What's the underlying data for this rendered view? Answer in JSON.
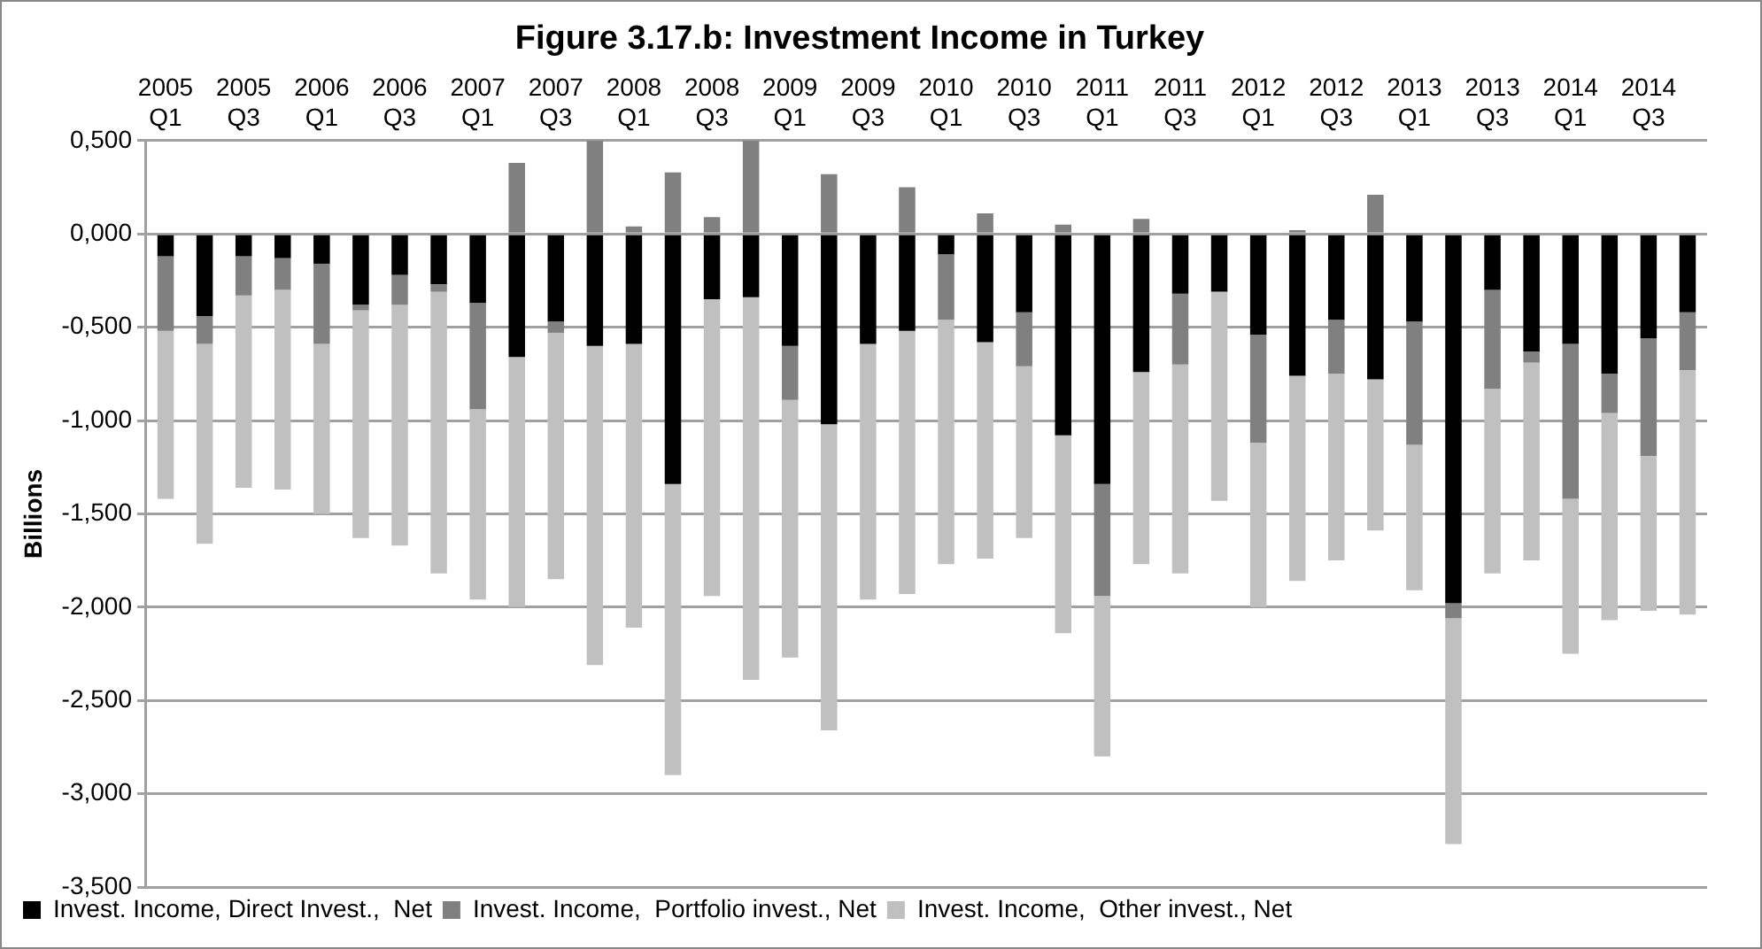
{
  "chart_data": {
    "type": "bar",
    "title": "Figure 3.17.b: Investment Income in Turkey",
    "ylabel": "Billions",
    "categories": [
      "2005 Q1",
      null,
      "2005 Q3",
      null,
      "2006 Q1",
      null,
      "2006 Q3",
      null,
      "2007 Q1",
      null,
      "2007 Q3",
      null,
      "2008 Q1",
      null,
      "2008 Q3",
      null,
      "2009 Q1",
      null,
      "2009 Q3",
      null,
      "2010 Q1",
      null,
      "2010 Q3",
      null,
      "2011 Q1",
      null,
      "2011 Q3",
      null,
      "2012 Q1",
      null,
      "2012 Q3",
      null,
      "2013 Q1",
      null,
      "2013 Q3",
      null,
      "2014 Q1",
      null,
      "2014 Q3",
      null
    ],
    "stacked": true,
    "series": [
      {
        "name": "Invest. Income, Direct Invest.,  Net",
        "color": "#000000",
        "values": [
          -0.12,
          -0.44,
          -0.12,
          -0.13,
          -0.16,
          -0.38,
          -0.22,
          -0.27,
          -0.37,
          -0.66,
          -0.47,
          -0.6,
          -0.59,
          -1.34,
          -0.35,
          -0.34,
          -0.6,
          -1.02,
          -0.59,
          -0.52,
          -0.11,
          -0.58,
          -0.42,
          -1.08,
          -1.34,
          -0.74,
          -0.32,
          -0.31,
          -0.54,
          -0.76,
          -0.46,
          -0.78,
          -0.47,
          -1.98,
          -0.3,
          -0.63,
          -0.59,
          -0.75,
          -0.56,
          -0.42
        ]
      },
      {
        "name": "Invest. Income,  Portfolio invest., Net",
        "color": "#808080",
        "values": [
          -0.4,
          -0.15,
          -0.21,
          -0.17,
          -0.43,
          -0.03,
          -0.16,
          -0.04,
          -0.57,
          0.38,
          -0.06,
          0.5,
          0.04,
          0.33,
          0.09,
          0.5,
          -0.29,
          0.32,
          null,
          0.25,
          -0.35,
          0.11,
          -0.29,
          0.05,
          -0.6,
          0.08,
          -0.38,
          null,
          -0.58,
          0.02,
          -0.29,
          0.21,
          -0.66,
          -0.08,
          -0.53,
          -0.06,
          -0.83,
          -0.21,
          -0.63,
          -0.31
        ]
      },
      {
        "name": "Invest. Income,  Other invest., Net",
        "color": "#c0c0c0",
        "values": [
          -0.9,
          -1.07,
          -1.03,
          -1.07,
          -0.91,
          -1.22,
          -1.29,
          -1.51,
          -1.02,
          -1.34,
          -1.32,
          -1.71,
          -1.52,
          -1.56,
          -1.59,
          -2.05,
          -1.38,
          -1.64,
          -1.37,
          -1.41,
          -1.31,
          -1.16,
          -0.92,
          -1.06,
          -0.86,
          -1.03,
          -1.12,
          -1.12,
          -0.88,
          -1.1,
          -1.0,
          -0.81,
          -0.78,
          -1.21,
          -0.99,
          -1.06,
          -0.83,
          -1.11,
          -0.83,
          -1.31
        ]
      }
    ],
    "ylim": [
      -3.5,
      0.5
    ],
    "yticks": [
      {
        "value": 0.5,
        "label": "0,500"
      },
      {
        "value": 0,
        "label": "0,000"
      },
      {
        "value": -0.5,
        "label": "-0,500"
      },
      {
        "value": -1,
        "label": "-1,000"
      },
      {
        "value": -1.5,
        "label": "-1,500"
      },
      {
        "value": -2,
        "label": "-2,000"
      },
      {
        "value": -2.5,
        "label": "-2,500"
      },
      {
        "value": -3,
        "label": "-3,000"
      },
      {
        "value": -3.5,
        "label": "-3,500"
      }
    ],
    "grid": "y",
    "legend": "bottom"
  }
}
